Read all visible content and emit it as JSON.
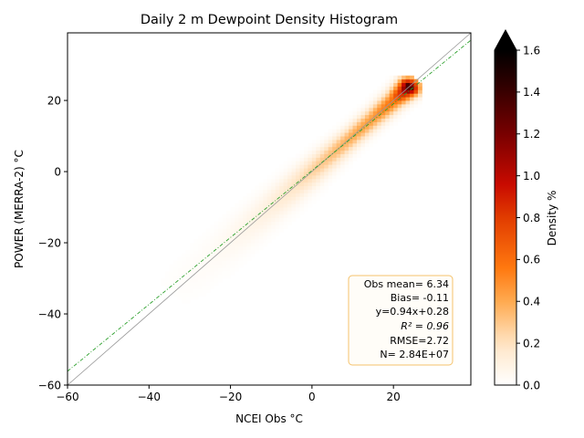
{
  "chart_data": {
    "type": "heatmap",
    "title": "Daily 2 m Dewpoint Density Histogram",
    "xlabel": "NCEI Obs °C",
    "ylabel": "POWER (MERRA-2) °C",
    "xlim": [
      -60,
      39
    ],
    "ylim": [
      -60,
      39
    ],
    "xticks": [
      -60,
      -40,
      -20,
      0,
      20
    ],
    "yticks": [
      -60,
      -40,
      -20,
      0,
      20
    ],
    "xtick_labels": [
      "−60",
      "−40",
      "−20",
      "0",
      "20"
    ],
    "ytick_labels": [
      "−60",
      "−40",
      "−20",
      "0",
      "20"
    ],
    "grid": false,
    "colorbar": {
      "label": "Density %",
      "range": [
        0,
        1.6
      ],
      "ticks": [
        0.0,
        0.2,
        0.4,
        0.6,
        0.8,
        1.0,
        1.2,
        1.4,
        1.6
      ],
      "tick_labels": [
        "0.0",
        "0.2",
        "0.4",
        "0.6",
        "0.8",
        "1.0",
        "1.2",
        "1.4",
        "1.6"
      ],
      "extend": "max",
      "colormap": "gist_heat_r"
    },
    "density_ridge": {
      "x": [
        -34,
        -30,
        -25,
        -20,
        -15,
        -10,
        -5,
        0,
        5,
        10,
        15,
        20,
        22,
        24,
        25.5
      ],
      "density": [
        0.01,
        0.02,
        0.03,
        0.05,
        0.08,
        0.12,
        0.18,
        0.26,
        0.33,
        0.4,
        0.45,
        0.6,
        0.9,
        1.45,
        0.5
      ]
    },
    "reference_lines": [
      {
        "name": "1:1 line",
        "slope": 1.0,
        "intercept": 0.0,
        "color": "#999999",
        "style": "solid"
      },
      {
        "name": "regression",
        "slope": 0.94,
        "intercept": 0.28,
        "color": "#2ca02c",
        "style": "dashed"
      }
    ],
    "stats_box": {
      "lines": [
        "Obs mean= 6.34",
        "Bias= -0.11",
        "y=0.94x+0.28",
        "R² = 0.96",
        "RMSE=2.72",
        "N= 2.84E+07"
      ],
      "border_color": "#f5c26b",
      "background": "#fffdf8"
    }
  }
}
